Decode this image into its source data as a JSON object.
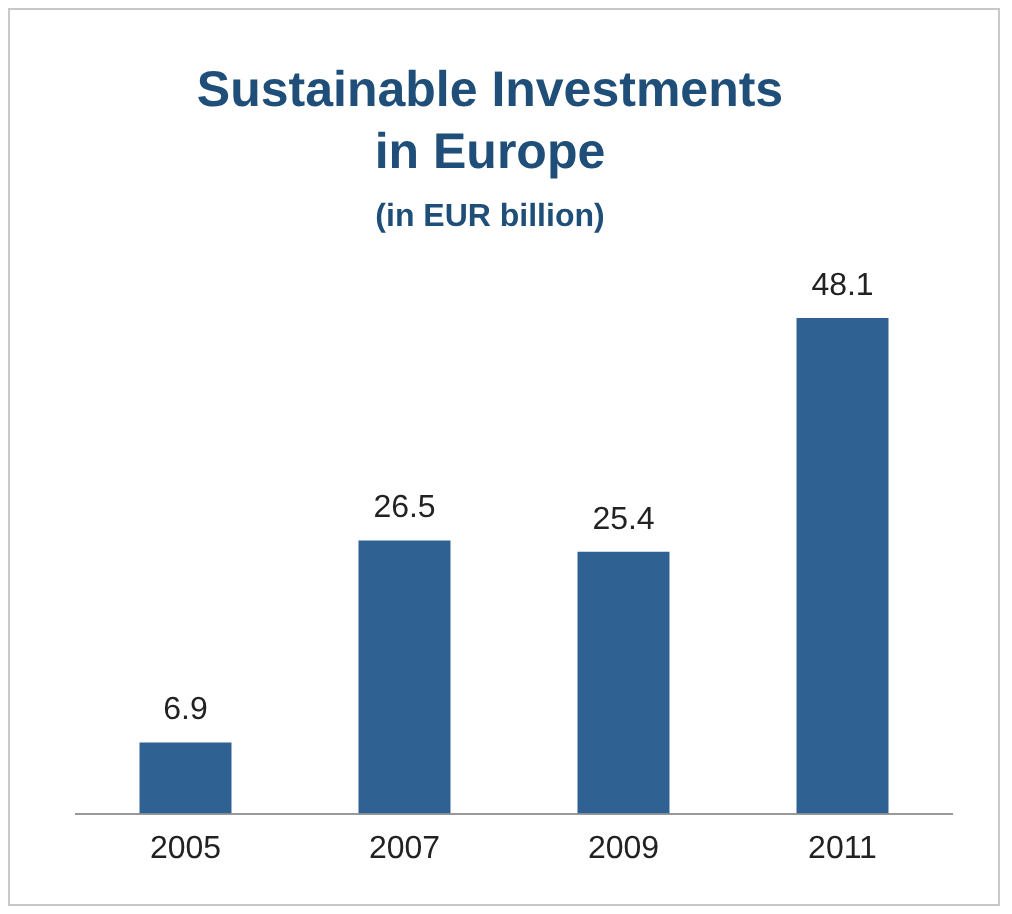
{
  "chart_data": {
    "type": "bar",
    "title": "Sustainable Investments in Europe",
    "subtitle": "(in EUR billion)",
    "categories": [
      "2005",
      "2007",
      "2009",
      "2011"
    ],
    "values": [
      6.9,
      26.5,
      25.4,
      48.1
    ],
    "color": "#2f6293",
    "data_labels": true
  }
}
